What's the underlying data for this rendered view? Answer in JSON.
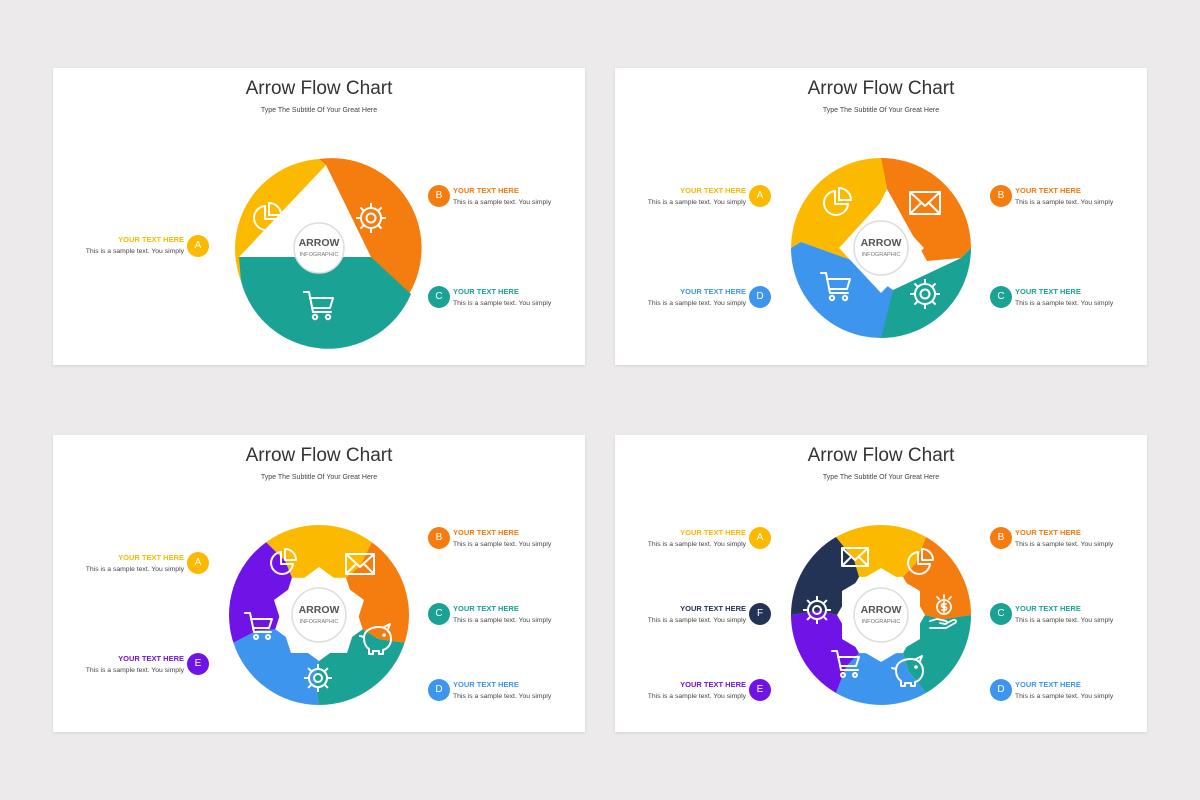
{
  "colors": {
    "yellow": "#FBB900",
    "orange": "#F57C0F",
    "teal": "#1AA394",
    "blue": "#3D95EE",
    "purple": "#7013E6",
    "navy": "#233356",
    "icon": "#ffffff",
    "ring": "#dddddd"
  },
  "slides": [
    {
      "title": "Arrow Flow Chart",
      "subtitle": "Type The Subtitle Of Your Great Here",
      "center": {
        "main": "ARROW",
        "sub": "INFOGRAPHIC"
      },
      "segments": [
        {
          "color": "yellow",
          "icon": "pie-chart-icon"
        },
        {
          "color": "orange",
          "icon": "gear-icon"
        },
        {
          "color": "teal",
          "icon": "cart-icon"
        }
      ],
      "labels": [
        {
          "letter": "A",
          "title": "YOUR TEXT HERE",
          "text": "This is a sample text. You simply",
          "color": "yellow",
          "side": "left"
        },
        {
          "letter": "B",
          "title": "YOUR TEXT HERE",
          "text": "This is a sample text. You simply",
          "color": "orange",
          "side": "right"
        },
        {
          "letter": "C",
          "title": "YOUR TEXT HERE",
          "text": "This is a sample text. You simply",
          "color": "teal",
          "side": "right"
        }
      ]
    },
    {
      "title": "Arrow Flow Chart",
      "subtitle": "Type The Subtitle Of Your Great Here",
      "center": {
        "main": "ARROW",
        "sub": "INFOGRAPHIC"
      },
      "segments": [
        {
          "color": "yellow",
          "icon": "pie-chart-icon"
        },
        {
          "color": "orange",
          "icon": "envelope-icon"
        },
        {
          "color": "teal",
          "icon": "gear-icon"
        },
        {
          "color": "blue",
          "icon": "cart-icon"
        }
      ],
      "labels": [
        {
          "letter": "A",
          "title": "YOUR TEXT HERE",
          "text": "This is a sample text. You simply",
          "color": "yellow",
          "side": "left"
        },
        {
          "letter": "B",
          "title": "YOUR TEXT HERE",
          "text": "This is a sample text. You simply",
          "color": "orange",
          "side": "right"
        },
        {
          "letter": "C",
          "title": "YOUR TEXT HERE",
          "text": "This is a sample text. You simply",
          "color": "teal",
          "side": "right"
        },
        {
          "letter": "D",
          "title": "YOUR TEXT HERE",
          "text": "This is a sample text. You simply",
          "color": "blue",
          "side": "left"
        }
      ]
    },
    {
      "title": "Arrow Flow Chart",
      "subtitle": "Type The Subtitle Of Your Great Here",
      "center": {
        "main": "ARROW",
        "sub": "INFOGRAPHIC"
      },
      "segments": [
        {
          "color": "yellow",
          "icon": "pie-chart-icon"
        },
        {
          "color": "orange",
          "icon": "envelope-icon"
        },
        {
          "color": "teal",
          "icon": "piggy-bank-icon"
        },
        {
          "color": "blue",
          "icon": "gear-icon"
        },
        {
          "color": "purple",
          "icon": "cart-icon"
        }
      ],
      "labels": [
        {
          "letter": "A",
          "title": "YOUR TEXT HERE",
          "text": "This is a sample text. You simply",
          "color": "yellow",
          "side": "left"
        },
        {
          "letter": "B",
          "title": "YOUR TEXT HERE",
          "text": "This is a sample text. You simply",
          "color": "orange",
          "side": "right"
        },
        {
          "letter": "C",
          "title": "YOUR TEXT HERE",
          "text": "This is a sample text. You simply",
          "color": "teal",
          "side": "right"
        },
        {
          "letter": "D",
          "title": "YOUR TEXT HERE",
          "text": "This is a sample text. You simply",
          "color": "blue",
          "side": "right"
        },
        {
          "letter": "E",
          "title": "YOUR TEXT HERE",
          "text": "This is a sample text. You simply",
          "color": "purple",
          "side": "left"
        }
      ]
    },
    {
      "title": "Arrow Flow Chart",
      "subtitle": "Type The Subtitle Of Your Great Here",
      "center": {
        "main": "ARROW",
        "sub": "INFOGRAPHIC"
      },
      "segments": [
        {
          "color": "yellow",
          "icon": "envelope-icon"
        },
        {
          "color": "orange",
          "icon": "pie-chart-icon"
        },
        {
          "color": "teal",
          "icon": "money-hand-icon"
        },
        {
          "color": "blue",
          "icon": "piggy-bank-icon"
        },
        {
          "color": "purple",
          "icon": "cart-icon"
        },
        {
          "color": "navy",
          "icon": "gear-icon"
        }
      ],
      "labels": [
        {
          "letter": "A",
          "title": "YOUR TEXT HERE",
          "text": "This is a sample text. You simply",
          "color": "yellow",
          "side": "left"
        },
        {
          "letter": "B",
          "title": "YOUR TEXT HERE",
          "text": "This is a sample text. You simply",
          "color": "orange",
          "side": "right"
        },
        {
          "letter": "C",
          "title": "YOUR TEXT HERE",
          "text": "This is a sample text. You simply",
          "color": "teal",
          "side": "right"
        },
        {
          "letter": "D",
          "title": "YOUR TEXT HERE",
          "text": "This is a sample text. You simply",
          "color": "blue",
          "side": "right"
        },
        {
          "letter": "E",
          "title": "YOUR TEXT HERE",
          "text": "This is a sample text. You simply",
          "color": "purple",
          "side": "left"
        },
        {
          "letter": "F",
          "title": "YOUR TEXT HERE",
          "text": "This is a sample text. You simply",
          "color": "navy",
          "side": "left"
        }
      ]
    }
  ]
}
